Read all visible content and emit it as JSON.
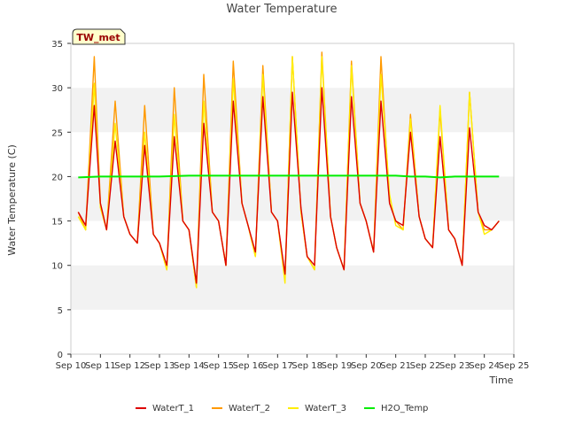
{
  "chart_data": {
    "type": "line",
    "title": "Water Temperature",
    "xlabel": "Time",
    "ylabel": "Water Temperature (C)",
    "ylim": [
      0,
      35
    ],
    "xlim": [
      "2024-09-10",
      "2024-09-25"
    ],
    "yticks": [
      0,
      5,
      10,
      15,
      20,
      25,
      30,
      35
    ],
    "xticks": [
      "Sep 10",
      "Sep 11",
      "Sep 12",
      "Sep 13",
      "Sep 14",
      "Sep 15",
      "Sep 16",
      "Sep 17",
      "Sep 18",
      "Sep 19",
      "Sep 20",
      "Sep 21",
      "Sep 22",
      "Sep 23",
      "Sep 24",
      "Sep 25"
    ],
    "grid": "horizontal bands",
    "legend_position": "bottom",
    "station_label": "TW_met",
    "series": [
      {
        "name": "WaterT_1",
        "color": "#dd0000",
        "x": [
          "2024-09-10 06:00",
          "2024-09-10 12:00",
          "2024-09-10 19:00",
          "2024-09-11 00:00",
          "2024-09-11 05:00",
          "2024-09-11 12:00",
          "2024-09-11 19:00",
          "2024-09-12 00:00",
          "2024-09-12 06:00",
          "2024-09-12 12:00",
          "2024-09-12 19:00",
          "2024-09-13 00:00",
          "2024-09-13 06:00",
          "2024-09-13 12:00",
          "2024-09-13 19:00",
          "2024-09-14 00:00",
          "2024-09-14 06:00",
          "2024-09-14 12:00",
          "2024-09-14 19:00",
          "2024-09-15 00:00",
          "2024-09-15 06:00",
          "2024-09-15 12:00",
          "2024-09-15 19:00",
          "2024-09-16 00:00",
          "2024-09-16 06:00",
          "2024-09-16 12:00",
          "2024-09-16 19:00",
          "2024-09-17 00:00",
          "2024-09-17 06:00",
          "2024-09-17 12:00",
          "2024-09-17 19:00",
          "2024-09-18 00:00",
          "2024-09-18 06:00",
          "2024-09-18 12:00",
          "2024-09-18 19:00",
          "2024-09-19 00:00",
          "2024-09-19 06:00",
          "2024-09-19 12:00",
          "2024-09-19 19:00",
          "2024-09-20 00:00",
          "2024-09-20 06:00",
          "2024-09-20 12:00",
          "2024-09-20 19:00",
          "2024-09-21 00:00",
          "2024-09-21 06:00",
          "2024-09-21 12:00",
          "2024-09-21 19:00",
          "2024-09-22 00:00",
          "2024-09-22 06:00",
          "2024-09-22 12:00",
          "2024-09-22 19:00",
          "2024-09-23 00:00",
          "2024-09-23 06:00",
          "2024-09-23 12:00",
          "2024-09-23 19:00",
          "2024-09-24 00:00",
          "2024-09-24 06:00",
          "2024-09-24 12:00"
        ],
        "values": [
          16,
          14.5,
          28,
          17,
          14,
          24,
          15.5,
          13.5,
          12.5,
          23.5,
          13.5,
          12.5,
          10,
          24.5,
          15,
          14,
          8,
          26,
          16,
          15,
          10,
          28.5,
          17,
          14.5,
          11.5,
          29,
          16,
          15,
          9,
          29.5,
          16.5,
          11,
          10,
          30,
          15.5,
          12,
          9.5,
          29,
          17,
          15,
          11.5,
          28.5,
          17,
          15,
          14.5,
          25,
          15.5,
          13,
          12,
          24.5,
          14,
          13,
          10,
          25.5,
          16,
          14.5,
          14,
          15
        ]
      },
      {
        "name": "WaterT_2",
        "color": "#ff9900",
        "x": [
          "2024-09-10 06:00",
          "2024-09-10 12:00",
          "2024-09-10 19:00",
          "2024-09-11 00:00",
          "2024-09-11 05:00",
          "2024-09-11 12:00",
          "2024-09-11 19:00",
          "2024-09-12 00:00",
          "2024-09-12 06:00",
          "2024-09-12 12:00",
          "2024-09-12 19:00",
          "2024-09-13 00:00",
          "2024-09-13 06:00",
          "2024-09-13 12:00",
          "2024-09-13 19:00",
          "2024-09-14 00:00",
          "2024-09-14 06:00",
          "2024-09-14 12:00",
          "2024-09-14 19:00",
          "2024-09-15 00:00",
          "2024-09-15 06:00",
          "2024-09-15 12:00",
          "2024-09-15 19:00",
          "2024-09-16 00:00",
          "2024-09-16 06:00",
          "2024-09-16 12:00",
          "2024-09-16 19:00",
          "2024-09-17 00:00",
          "2024-09-17 06:00",
          "2024-09-17 12:00",
          "2024-09-17 19:00",
          "2024-09-18 00:00",
          "2024-09-18 06:00",
          "2024-09-18 12:00",
          "2024-09-18 19:00",
          "2024-09-19 00:00",
          "2024-09-19 06:00",
          "2024-09-19 12:00",
          "2024-09-19 19:00",
          "2024-09-20 00:00",
          "2024-09-20 06:00",
          "2024-09-20 12:00",
          "2024-09-20 19:00",
          "2024-09-21 00:00",
          "2024-09-21 06:00",
          "2024-09-21 12:00",
          "2024-09-21 19:00",
          "2024-09-22 00:00",
          "2024-09-22 06:00",
          "2024-09-22 12:00",
          "2024-09-22 19:00",
          "2024-09-23 00:00",
          "2024-09-23 06:00",
          "2024-09-23 12:00",
          "2024-09-23 19:00",
          "2024-09-24 00:00",
          "2024-09-24 06:00",
          "2024-09-24 12:00"
        ],
        "values": [
          16,
          14,
          33.5,
          17,
          14,
          28.5,
          15.5,
          13.5,
          12.5,
          28,
          13.5,
          12.5,
          9.5,
          30,
          15,
          14,
          7.5,
          31.5,
          16,
          15,
          10,
          33,
          17,
          14.5,
          11,
          32.5,
          16,
          15,
          8.5,
          33.5,
          16,
          11,
          9.5,
          34,
          15.5,
          12,
          9.5,
          33,
          17,
          15,
          11.5,
          33.5,
          17,
          15,
          14,
          27,
          15.5,
          13,
          12,
          27.5,
          14,
          13,
          10,
          29.5,
          16,
          14,
          14,
          15
        ]
      },
      {
        "name": "WaterT_3",
        "color": "#ffee00",
        "x": [
          "2024-09-10 06:00",
          "2024-09-10 12:00",
          "2024-09-10 19:00",
          "2024-09-11 00:00",
          "2024-09-11 05:00",
          "2024-09-11 12:00",
          "2024-09-11 19:00",
          "2024-09-12 00:00",
          "2024-09-12 06:00",
          "2024-09-12 12:00",
          "2024-09-12 19:00",
          "2024-09-13 00:00",
          "2024-09-13 06:00",
          "2024-09-13 12:00",
          "2024-09-13 19:00",
          "2024-09-14 00:00",
          "2024-09-14 06:00",
          "2024-09-14 12:00",
          "2024-09-14 19:00",
          "2024-09-15 00:00",
          "2024-09-15 06:00",
          "2024-09-15 12:00",
          "2024-09-15 19:00",
          "2024-09-16 00:00",
          "2024-09-16 06:00",
          "2024-09-16 12:00",
          "2024-09-16 19:00",
          "2024-09-17 00:00",
          "2024-09-17 06:00",
          "2024-09-17 12:00",
          "2024-09-17 19:00",
          "2024-09-18 00:00",
          "2024-09-18 06:00",
          "2024-09-18 12:00",
          "2024-09-18 19:00",
          "2024-09-19 00:00",
          "2024-09-19 06:00",
          "2024-09-19 12:00",
          "2024-09-19 19:00",
          "2024-09-20 00:00",
          "2024-09-20 06:00",
          "2024-09-20 12:00",
          "2024-09-20 19:00",
          "2024-09-21 00:00",
          "2024-09-21 06:00",
          "2024-09-21 12:00",
          "2024-09-21 19:00",
          "2024-09-22 00:00",
          "2024-09-22 06:00",
          "2024-09-22 12:00",
          "2024-09-22 19:00",
          "2024-09-23 00:00",
          "2024-09-23 06:00",
          "2024-09-23 12:00",
          "2024-09-23 19:00",
          "2024-09-24 00:00",
          "2024-09-24 06:00",
          "2024-09-24 12:00"
        ],
        "values": [
          15.5,
          14,
          30.5,
          16.5,
          14,
          26,
          15.5,
          13.5,
          12.5,
          25,
          13.5,
          12.5,
          9.5,
          27,
          15,
          14,
          7.5,
          28.5,
          16,
          15,
          10,
          31,
          17,
          14.5,
          11,
          31.5,
          16,
          15,
          8,
          33.5,
          16,
          11,
          9.5,
          33.5,
          15.5,
          12,
          9.5,
          32.5,
          17,
          15,
          11.5,
          31.5,
          18,
          14.5,
          14,
          26.5,
          15.5,
          13,
          12,
          28,
          14,
          13,
          10,
          29.5,
          16,
          13.5,
          14,
          15
        ]
      },
      {
        "name": "H2O_Temp",
        "color": "#00ee00",
        "x": [
          "2024-09-10 06:00",
          "2024-09-11 00:00",
          "2024-09-12 00:00",
          "2024-09-13 00:00",
          "2024-09-14 00:00",
          "2024-09-15 00:00",
          "2024-09-16 00:00",
          "2024-09-17 00:00",
          "2024-09-18 00:00",
          "2024-09-19 00:00",
          "2024-09-20 00:00",
          "2024-09-21 00:00",
          "2024-09-21 12:00",
          "2024-09-22 00:00",
          "2024-09-22 12:00",
          "2024-09-23 00:00",
          "2024-09-24 00:00",
          "2024-09-24 12:00"
        ],
        "values": [
          19.9,
          20.0,
          20.0,
          20.0,
          20.1,
          20.1,
          20.1,
          20.1,
          20.1,
          20.1,
          20.1,
          20.1,
          20.0,
          20.0,
          19.9,
          20.0,
          20.0,
          20.0
        ]
      }
    ]
  }
}
